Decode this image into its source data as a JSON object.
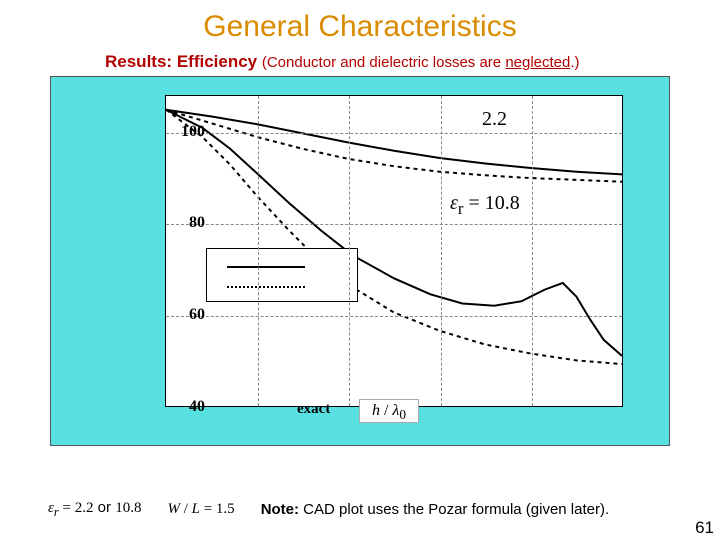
{
  "title": {
    "text": "General Characteristics",
    "color": "#d98c00"
  },
  "subtitle": {
    "results": "Results:",
    "efficiency": "Efficiency",
    "note": "(Conductor and dielectric losses are ",
    "neglected": "neglected",
    "end": ".)",
    "color": "#b30000"
  },
  "chart": {
    "panel_bg": "#58e0e0",
    "plot_bg": "#ffffff",
    "x_range": [
      0.0,
      0.1
    ],
    "x_ticks": [
      0.0,
      0.02,
      0.04,
      0.06,
      0.08,
      0.1
    ],
    "y_range": [
      40,
      108
    ],
    "y_ticks": [
      40,
      60,
      80,
      100
    ],
    "grid_color": "#888888",
    "curves": {
      "solid_22": {
        "color": "#000000",
        "width": 2,
        "dash": "none",
        "points": [
          [
            0.0,
            105
          ],
          [
            0.01,
            103.5
          ],
          [
            0.02,
            101.8
          ],
          [
            0.03,
            99.8
          ],
          [
            0.04,
            97.8
          ],
          [
            0.05,
            96.0
          ],
          [
            0.06,
            94.4
          ],
          [
            0.07,
            93.2
          ],
          [
            0.08,
            92.2
          ],
          [
            0.09,
            91.4
          ],
          [
            0.1,
            90.8
          ]
        ]
      },
      "dashed_22": {
        "color": "#000000",
        "width": 2,
        "dash": "4 4",
        "points": [
          [
            0.0,
            105
          ],
          [
            0.01,
            102.0
          ],
          [
            0.02,
            99.0
          ],
          [
            0.03,
            96.4
          ],
          [
            0.04,
            94.2
          ],
          [
            0.05,
            92.6
          ],
          [
            0.06,
            91.4
          ],
          [
            0.07,
            90.6
          ],
          [
            0.08,
            90.0
          ],
          [
            0.09,
            89.6
          ],
          [
            0.1,
            89.2
          ]
        ]
      },
      "solid_108": {
        "color": "#000000",
        "width": 2,
        "dash": "none",
        "points": [
          [
            0.0,
            105
          ],
          [
            0.008,
            101
          ],
          [
            0.014,
            96.5
          ],
          [
            0.02,
            91.0
          ],
          [
            0.027,
            84.5
          ],
          [
            0.034,
            78.5
          ],
          [
            0.041,
            73.0
          ],
          [
            0.05,
            68.0
          ],
          [
            0.058,
            64.5
          ],
          [
            0.065,
            62.5
          ],
          [
            0.072,
            62.0
          ],
          [
            0.078,
            63.0
          ],
          [
            0.083,
            65.5
          ],
          [
            0.087,
            67.0
          ],
          [
            0.09,
            64.0
          ],
          [
            0.093,
            59.0
          ],
          [
            0.096,
            54.5
          ],
          [
            0.1,
            51.0
          ]
        ]
      },
      "dashed_108": {
        "color": "#000000",
        "width": 2,
        "dash": "4 4",
        "points": [
          [
            0.0,
            105
          ],
          [
            0.008,
            99.0
          ],
          [
            0.014,
            93.0
          ],
          [
            0.02,
            86.0
          ],
          [
            0.027,
            78.5
          ],
          [
            0.034,
            71.5
          ],
          [
            0.041,
            66.0
          ],
          [
            0.05,
            60.5
          ],
          [
            0.06,
            56.5
          ],
          [
            0.07,
            53.5
          ],
          [
            0.08,
            51.5
          ],
          [
            0.09,
            50.0
          ],
          [
            0.1,
            49.2
          ]
        ]
      }
    },
    "label_22": "2.2",
    "label_er108_prefix": "ε",
    "label_er108_sub": "r",
    "label_er108_rest": " = 10.8",
    "legend_exact": "exact",
    "xaxis_label_h": "h",
    "xaxis_label_slash": " / ",
    "xaxis_label_lambda": "λ",
    "xaxis_label_sub": "0"
  },
  "footer": {
    "er_prefix": "ε",
    "er_sub": "r",
    "er_rest": " = 2.2",
    "or": " or ",
    "er_rest2": "10.8",
    "wl": "W / L = 1.5",
    "note_bold": "Note:",
    "note_rest": " CAD plot uses the Pozar formula (given later)."
  },
  "page_number": "61"
}
